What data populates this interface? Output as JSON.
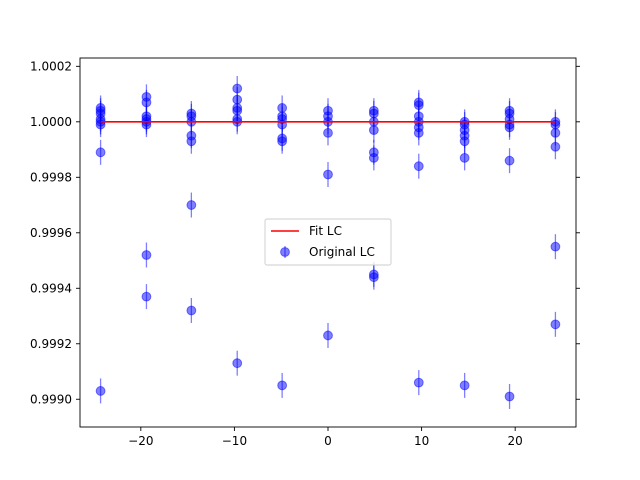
{
  "chart_data": {
    "type": "scatter",
    "xlim": [
      -26.5,
      26.5
    ],
    "ylim": [
      0.9989,
      1.00023
    ],
    "x_ticks": [
      -20,
      -10,
      0,
      10,
      20
    ],
    "x_tick_labels": [
      "−20",
      "−10",
      "0",
      "10",
      "20"
    ],
    "y_ticks": [
      0.999,
      0.9992,
      0.9994,
      0.9996,
      0.9998,
      1.0,
      1.0002
    ],
    "y_tick_labels": [
      "0.9990",
      "0.9992",
      "0.9994",
      "0.9996",
      "0.9998",
      "1.0000",
      "1.0002"
    ],
    "grid": false,
    "legend_position": "center",
    "yerr": 4.5e-05,
    "series": [
      {
        "name": "Fit LC",
        "kind": "line",
        "color": "#ff0000",
        "x": [
          -24.3,
          24.3
        ],
        "y": [
          1.0,
          1.0
        ]
      },
      {
        "name": "Original LC",
        "kind": "errorbar-points",
        "color": "#0000ff",
        "opacity": 0.5,
        "points": [
          [
            -24.3,
            1.00004
          ],
          [
            -24.3,
            1.00005
          ],
          [
            -24.3,
            1.00003
          ],
          [
            -24.3,
            1.00001
          ],
          [
            -24.3,
            1.0
          ],
          [
            -24.3,
            0.99999
          ],
          [
            -24.3,
            0.99989
          ],
          [
            -24.3,
            0.99903
          ],
          [
            -19.4,
            1.00009
          ],
          [
            -19.4,
            1.00007
          ],
          [
            -19.4,
            1.00002
          ],
          [
            -19.4,
            1.00001
          ],
          [
            -19.4,
            1.0
          ],
          [
            -19.4,
            0.99999
          ],
          [
            -19.4,
            0.99952
          ],
          [
            -19.4,
            0.99937
          ],
          [
            -14.6,
            1.00003
          ],
          [
            -14.6,
            1.00002
          ],
          [
            -14.6,
            1.0
          ],
          [
            -14.6,
            0.99995
          ],
          [
            -14.6,
            0.99993
          ],
          [
            -14.6,
            0.9997
          ],
          [
            -14.6,
            0.99932
          ],
          [
            -9.7,
            1.00012
          ],
          [
            -9.7,
            1.00008
          ],
          [
            -9.7,
            1.00005
          ],
          [
            -9.7,
            1.00004
          ],
          [
            -9.7,
            1.00001
          ],
          [
            -9.7,
            1.0
          ],
          [
            -9.7,
            0.99913
          ],
          [
            -4.9,
            1.00005
          ],
          [
            -4.9,
            1.00002
          ],
          [
            -4.9,
            1.00001
          ],
          [
            -4.9,
            0.99999
          ],
          [
            -4.9,
            0.99994
          ],
          [
            -4.9,
            0.99993
          ],
          [
            -4.9,
            0.99905
          ],
          [
            0.0,
            1.00004
          ],
          [
            0.0,
            1.00002
          ],
          [
            0.0,
            1.0
          ],
          [
            0.0,
            0.99996
          ],
          [
            0.0,
            0.99981
          ],
          [
            0.0,
            0.99923
          ],
          [
            4.9,
            1.00004
          ],
          [
            4.9,
            1.00003
          ],
          [
            4.9,
            1.0
          ],
          [
            4.9,
            0.99997
          ],
          [
            4.9,
            0.99989
          ],
          [
            4.9,
            0.99987
          ],
          [
            4.9,
            0.99945
          ],
          [
            4.9,
            0.99944
          ],
          [
            9.7,
            1.00007
          ],
          [
            9.7,
            1.00006
          ],
          [
            9.7,
            1.00002
          ],
          [
            9.7,
            1.0
          ],
          [
            9.7,
            0.99998
          ],
          [
            9.7,
            0.99996
          ],
          [
            9.7,
            0.99984
          ],
          [
            9.7,
            0.99906
          ],
          [
            14.6,
            1.0
          ],
          [
            14.6,
            0.99999
          ],
          [
            14.6,
            0.99997
          ],
          [
            14.6,
            0.99995
          ],
          [
            14.6,
            0.99993
          ],
          [
            14.6,
            0.99987
          ],
          [
            14.6,
            0.99905
          ],
          [
            19.4,
            1.00004
          ],
          [
            19.4,
            1.00003
          ],
          [
            19.4,
            1.00001
          ],
          [
            19.4,
            0.99999
          ],
          [
            19.4,
            0.99998
          ],
          [
            19.4,
            0.99986
          ],
          [
            19.4,
            0.99901
          ],
          [
            24.3,
            1.0
          ],
          [
            24.3,
            0.99999
          ],
          [
            24.3,
            0.99996
          ],
          [
            24.3,
            0.99991
          ],
          [
            24.3,
            0.99955
          ],
          [
            24.3,
            0.99927
          ]
        ]
      }
    ]
  }
}
